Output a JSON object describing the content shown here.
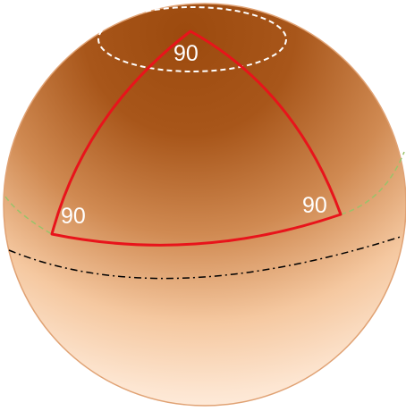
{
  "angles": {
    "top": "90",
    "left": "90",
    "right": "90"
  },
  "colors": {
    "sphere_top": "#9c4a0e",
    "sphere_mid": "#d58a52",
    "sphere_bottom": "#fff2e6",
    "triangle_edge": "#e8141b",
    "cap_circle": "#ffffff",
    "equator_dashed": "#9ac26a",
    "great_circle": "#000000",
    "angle_text": "#ffffff"
  }
}
